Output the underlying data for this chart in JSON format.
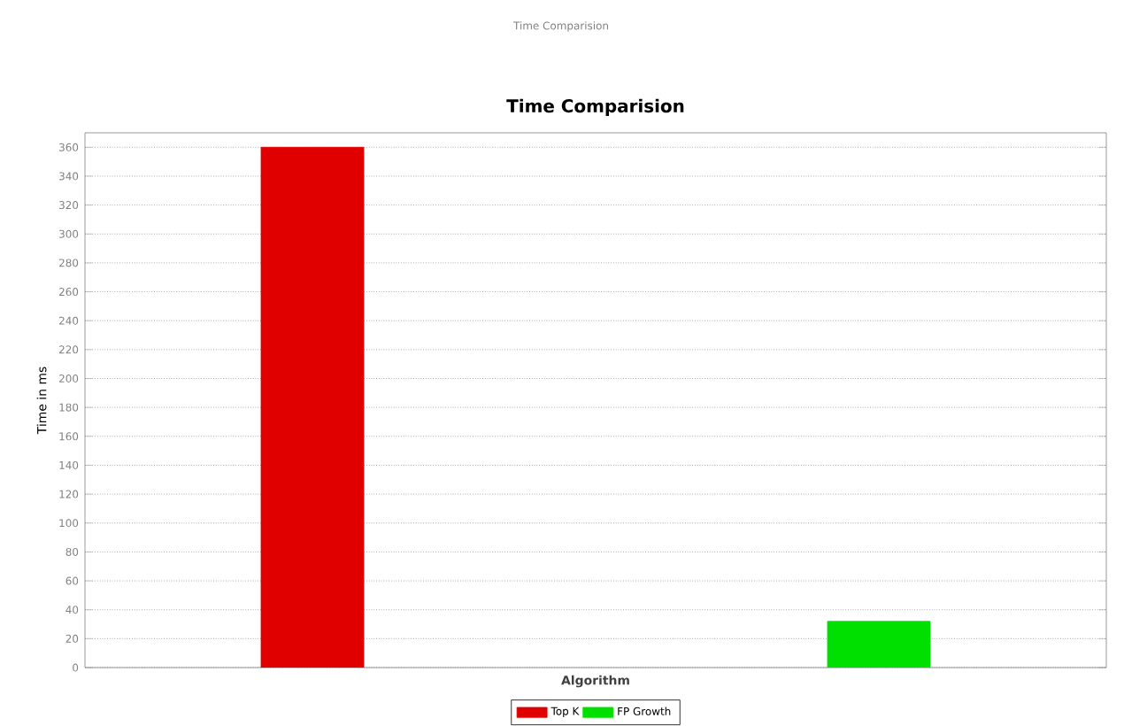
{
  "chart_data": {
    "type": "bar",
    "title": "Time Comparision",
    "xlabel": "Algorithm",
    "ylabel": "Time in ms",
    "annotations": [
      "Time Comparision"
    ],
    "categories": [
      null
    ],
    "series": [
      {
        "name": "Top K",
        "color": "#e00000",
        "values": [
          360
        ]
      },
      {
        "name": "FP Growth",
        "color": "#00e000",
        "values": [
          32
        ]
      }
    ],
    "ylim": [
      0,
      370
    ],
    "yticks": [
      0,
      20,
      40,
      60,
      80,
      100,
      120,
      140,
      160,
      180,
      200,
      220,
      240,
      260,
      280,
      300,
      320,
      340,
      360
    ],
    "grid": "y",
    "legend": "bottom"
  }
}
